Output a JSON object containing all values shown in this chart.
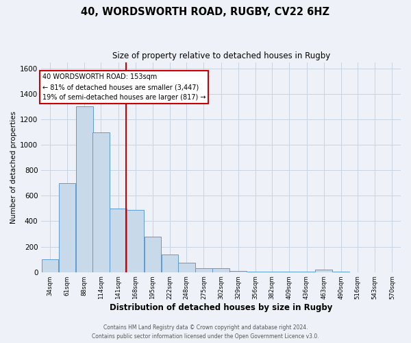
{
  "title1": "40, WORDSWORTH ROAD, RUGBY, CV22 6HZ",
  "title2": "Size of property relative to detached houses in Rugby",
  "xlabel": "Distribution of detached houses by size in Rugby",
  "ylabel": "Number of detached properties",
  "footer1": "Contains HM Land Registry data © Crown copyright and database right 2024.",
  "footer2": "Contains public sector information licensed under the Open Government Licence v3.0.",
  "annotation_line1": "40 WORDSWORTH ROAD: 153sqm",
  "annotation_line2": "← 81% of detached houses are smaller (3,447)",
  "annotation_line3": "19% of semi-detached houses are larger (817) →",
  "bar_centers": [
    34,
    61,
    88,
    114,
    141,
    168,
    195,
    222,
    248,
    275,
    302,
    329,
    356,
    382,
    409,
    436,
    463,
    490,
    516,
    543,
    570
  ],
  "bar_heights": [
    100,
    700,
    1300,
    1100,
    500,
    490,
    280,
    140,
    75,
    30,
    30,
    10,
    5,
    5,
    5,
    5,
    20,
    2,
    0,
    0,
    0
  ],
  "bar_color": "#c8d9ea",
  "bar_edgecolor": "#5b9bd5",
  "red_line_x": 153,
  "red_line_color": "#cc0000",
  "ylim": [
    0,
    1650
  ],
  "yticks": [
    0,
    200,
    400,
    600,
    800,
    1000,
    1200,
    1400,
    1600
  ],
  "grid_color": "#c8d4e3",
  "bg_color": "#eef2f8",
  "annotation_box_color": "#ffffff",
  "annotation_box_edgecolor": "#cc0000"
}
